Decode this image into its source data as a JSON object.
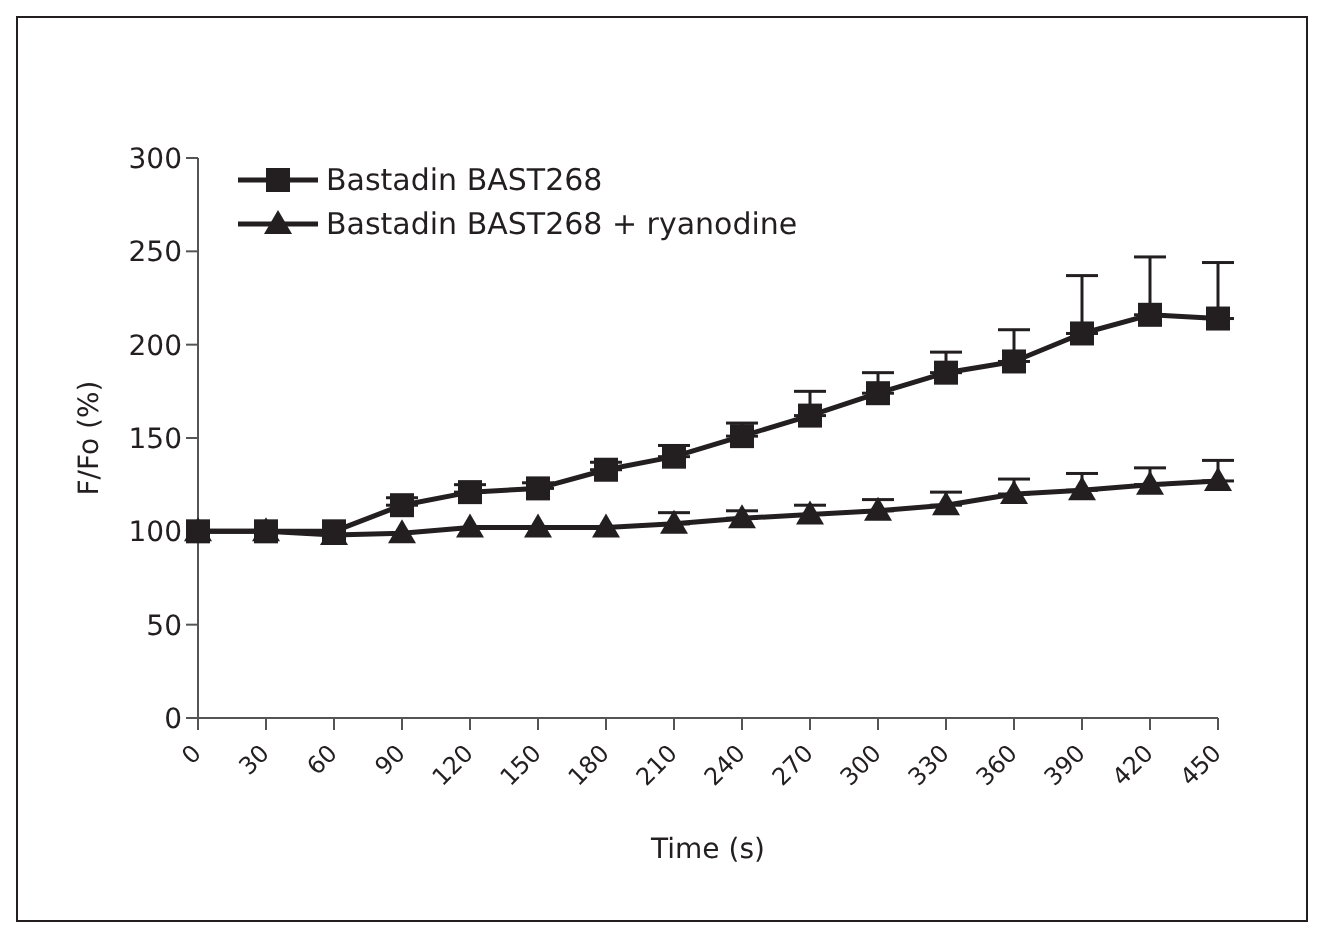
{
  "chart_data": {
    "type": "line",
    "xlabel": "Time (s)",
    "ylabel": "F/Fo (%)",
    "categories": [
      "0",
      "30",
      "60",
      "90",
      "120",
      "150",
      "180",
      "210",
      "240",
      "270",
      "300",
      "330",
      "360",
      "390",
      "420",
      "450"
    ],
    "ylim": [
      0,
      300
    ],
    "yticks": [
      0,
      50,
      100,
      150,
      200,
      250,
      300
    ],
    "grid": false,
    "legend": "top left",
    "series": [
      {
        "name": "Bastadin BAST268",
        "color": "#231f20",
        "marker": "square",
        "values": [
          100,
          100,
          100,
          114,
          121,
          123,
          133,
          140,
          151,
          162,
          174,
          185,
          191,
          206,
          216,
          214
        ],
        "errors": [
          null,
          null,
          null,
          [
            114,
            118
          ],
          [
            121,
            125
          ],
          [
            123,
            126
          ],
          [
            133,
            137
          ],
          [
            140,
            146
          ],
          [
            151,
            158
          ],
          [
            162,
            175
          ],
          [
            174,
            185
          ],
          [
            185,
            196
          ],
          [
            191,
            208
          ],
          [
            206,
            237
          ],
          [
            216,
            247
          ],
          [
            214,
            244
          ]
        ]
      },
      {
        "name": "Bastadin BAST268 + ryanodine",
        "color": "#231f20",
        "marker": "triangle",
        "values": [
          100,
          100,
          98,
          99,
          102,
          102,
          102,
          104,
          107,
          109,
          111,
          114,
          120,
          122,
          125,
          127
        ],
        "errors": [
          null,
          null,
          null,
          null,
          null,
          null,
          null,
          [
            104,
            110
          ],
          [
            107,
            111
          ],
          [
            109,
            114
          ],
          [
            111,
            117
          ],
          [
            114,
            121
          ],
          [
            120,
            128
          ],
          [
            122,
            131
          ],
          [
            125,
            134
          ],
          [
            127,
            138
          ]
        ]
      }
    ]
  }
}
